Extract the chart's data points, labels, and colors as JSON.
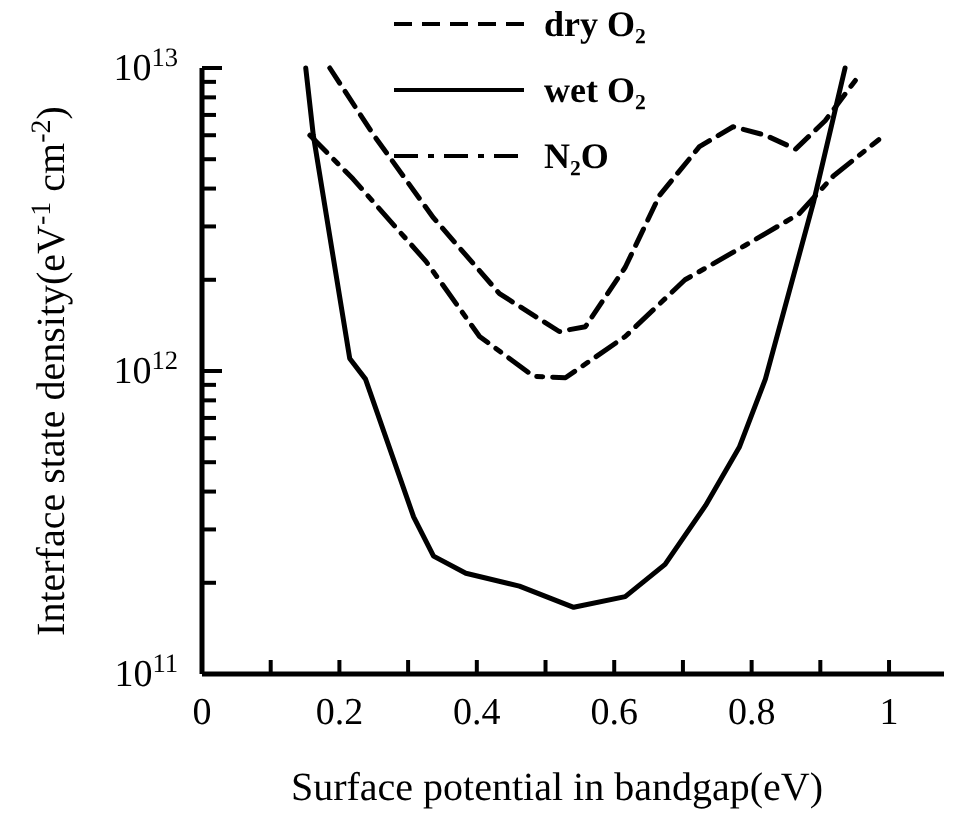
{
  "chart_data": {
    "type": "line",
    "xlabel": "Surface potential in bandgap(eV)",
    "ylabel": "Interface state density(eV$^{-1}$ cm$^{-2}$)",
    "log": "y",
    "xlim": [
      0,
      1.08
    ],
    "ylim": [
      100000000000.0,
      10000000000000.0
    ],
    "xticks": [
      0,
      {
        "value": 0.1,
        "label": null
      },
      0.2,
      {
        "value": 0.3,
        "label": null
      },
      0.4,
      {
        "value": 0.5,
        "label": null
      },
      0.6,
      {
        "value": 0.7,
        "label": null
      },
      0.8,
      {
        "value": 0.9,
        "label": null
      },
      1
    ],
    "yticks": [
      {
        "value": 100000000000.0,
        "label": "10$^{11}$"
      },
      {
        "value": 200000000000.0,
        "label": null
      },
      {
        "value": 300000000000.0,
        "label": null
      },
      {
        "value": 400000000000.0,
        "label": null
      },
      {
        "value": 500000000000.0,
        "label": null
      },
      {
        "value": 600000000000.0,
        "label": null
      },
      {
        "value": 700000000000.0,
        "label": null
      },
      {
        "value": 800000000000.0,
        "label": null
      },
      {
        "value": 900000000000.0,
        "label": null
      },
      {
        "value": 1000000000000.0,
        "label": "10$^{12}$"
      },
      {
        "value": 2000000000000.0,
        "label": null
      },
      {
        "value": 3000000000000.0,
        "label": null
      },
      {
        "value": 4000000000000.0,
        "label": null
      },
      {
        "value": 5000000000000.0,
        "label": null
      },
      {
        "value": 6000000000000.0,
        "label": null
      },
      {
        "value": 7000000000000.0,
        "label": null
      },
      {
        "value": 8000000000000.0,
        "label": null
      },
      {
        "value": 9000000000000.0,
        "label": null
      },
      {
        "value": 10000000000000.0,
        "label": "10$^{13}$"
      }
    ],
    "grid": false,
    "legend": "top",
    "marker": "none",
    "series": [
      {
        "name": "dry O₂",
        "color": "#000000",
        "line_style": "dashed",
        "x": [
          0.186,
          0.25,
          0.337,
          0.433,
          0.52,
          0.558,
          0.616,
          0.666,
          0.724,
          0.773,
          0.82,
          0.864,
          0.907,
          0.951
        ],
        "values": [
          10000000000000.0,
          6000000000000.0,
          3200000000000.0,
          1800000000000.0,
          1350000000000.0,
          1400000000000.0,
          2200000000000.0,
          3800000000000.0,
          5500000000000.0,
          6400000000000.0,
          6000000000000.0,
          5400000000000.0,
          6700000000000.0,
          9100000000000.0
        ]
      },
      {
        "name": "wet O₂",
        "color": "#000000",
        "line_style": "solid",
        "x": [
          0.151,
          0.162,
          0.215,
          0.238,
          0.308,
          0.337,
          0.384,
          0.462,
          0.541,
          0.616,
          0.674,
          0.733,
          0.782,
          0.82,
          0.89,
          0.936
        ],
        "values": [
          10000000000000.0,
          6000000000000.0,
          1100000000000.0,
          940000000000.0,
          330000000000.0,
          245000000000.0,
          215000000000.0,
          195000000000.0,
          166000000000.0,
          180000000000.0,
          230000000000.0,
          360000000000.0,
          560000000000.0,
          940000000000.0,
          3600000000000.0,
          10000000000000.0
        ]
      },
      {
        "name": "N₂O",
        "color": "#000000",
        "line_style": "dashdot",
        "x": [
          0.157,
          0.22,
          0.326,
          0.404,
          0.483,
          0.529,
          0.616,
          0.703,
          0.791,
          0.869,
          0.919,
          0.985
        ],
        "values": [
          6000000000000.0,
          4300000000000.0,
          2300000000000.0,
          1300000000000.0,
          960000000000.0,
          950000000000.0,
          1300000000000.0,
          2000000000000.0,
          2600000000000.0,
          3300000000000.0,
          4400000000000.0,
          5800000000000.0
        ]
      }
    ]
  }
}
